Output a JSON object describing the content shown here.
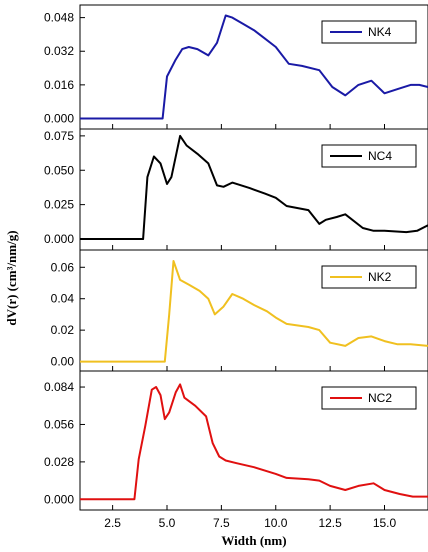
{
  "chart_data": {
    "type": "line",
    "xlabel": "Width (nm)",
    "ylabel": "dV(r) (cm³/nm/g)",
    "xlim": [
      1.0,
      17.0
    ],
    "xticks": [
      "2.5",
      "5.0",
      "7.5",
      "10.0",
      "12.5",
      "15.0"
    ],
    "xtick_values": [
      2.5,
      5.0,
      7.5,
      10.0,
      12.5,
      15.0
    ],
    "panels": [
      {
        "series": [
          {
            "name": "NK4",
            "color": "#1a1aa6",
            "x": [
              1.0,
              4.8,
              5.0,
              5.4,
              5.7,
              6.0,
              6.4,
              6.9,
              7.3,
              7.7,
              8.0,
              8.5,
              9.0,
              9.5,
              10.0,
              10.6,
              11.2,
              12.0,
              12.6,
              13.2,
              13.8,
              14.4,
              15.0,
              15.6,
              16.2,
              16.6,
              17.0
            ],
            "y": [
              0.0,
              0.0,
              0.02,
              0.028,
              0.033,
              0.034,
              0.033,
              0.03,
              0.036,
              0.049,
              0.048,
              0.045,
              0.042,
              0.038,
              0.034,
              0.026,
              0.025,
              0.023,
              0.015,
              0.011,
              0.016,
              0.018,
              0.012,
              0.014,
              0.016,
              0.016,
              0.015
            ]
          }
        ],
        "ylim": [
          -0.005,
          0.054
        ],
        "yticks": [
          "0.000",
          "0.016",
          "0.032",
          "0.048"
        ],
        "ytick_values": [
          0.0,
          0.016,
          0.032,
          0.048
        ]
      },
      {
        "series": [
          {
            "name": "NC4",
            "color": "#000000",
            "x": [
              1.0,
              3.9,
              4.1,
              4.4,
              4.7,
              5.0,
              5.2,
              5.6,
              5.9,
              6.4,
              6.9,
              7.3,
              7.6,
              8.0,
              8.8,
              9.5,
              10.0,
              10.5,
              11.5,
              12.0,
              12.3,
              12.8,
              13.2,
              14.0,
              14.5,
              15.0,
              16.0,
              16.5,
              17.0
            ],
            "y": [
              0.0,
              0.0,
              0.045,
              0.06,
              0.055,
              0.04,
              0.045,
              0.075,
              0.068,
              0.062,
              0.055,
              0.039,
              0.038,
              0.041,
              0.037,
              0.033,
              0.03,
              0.024,
              0.021,
              0.011,
              0.014,
              0.016,
              0.018,
              0.008,
              0.006,
              0.006,
              0.005,
              0.006,
              0.01
            ]
          }
        ],
        "ylim": [
          -0.008,
          0.08
        ],
        "yticks": [
          "0.000",
          "0.025",
          "0.050",
          "0.075"
        ],
        "ytick_values": [
          0.0,
          0.025,
          0.05,
          0.075
        ]
      },
      {
        "series": [
          {
            "name": "NK2",
            "color": "#f0c020",
            "x": [
              1.0,
              4.9,
              5.1,
              5.3,
              5.6,
              6.0,
              6.5,
              6.9,
              7.2,
              7.6,
              8.0,
              8.5,
              9.0,
              9.6,
              10.0,
              10.5,
              11.5,
              12.0,
              12.5,
              13.2,
              13.8,
              14.4,
              15.0,
              15.6,
              16.2,
              17.0
            ],
            "y": [
              0.0,
              0.0,
              0.03,
              0.064,
              0.052,
              0.049,
              0.045,
              0.04,
              0.03,
              0.035,
              0.043,
              0.04,
              0.036,
              0.032,
              0.028,
              0.024,
              0.022,
              0.02,
              0.012,
              0.01,
              0.015,
              0.016,
              0.013,
              0.011,
              0.011,
              0.01
            ]
          }
        ],
        "ylim": [
          -0.006,
          0.071
        ],
        "yticks": [
          "0.00",
          "0.02",
          "0.04",
          "0.06"
        ],
        "ytick_values": [
          0.0,
          0.02,
          0.04,
          0.06
        ]
      },
      {
        "series": [
          {
            "name": "NC2",
            "color": "#e01010",
            "x": [
              1.0,
              3.5,
              3.7,
              4.0,
              4.3,
              4.5,
              4.7,
              4.9,
              5.1,
              5.4,
              5.6,
              5.8,
              6.3,
              6.8,
              7.1,
              7.4,
              7.7,
              8.2,
              9.0,
              10.0,
              10.5,
              11.5,
              12.0,
              12.5,
              13.2,
              13.8,
              14.5,
              15.0,
              15.7,
              16.3,
              17.0
            ],
            "y": [
              0.0,
              0.0,
              0.03,
              0.055,
              0.082,
              0.084,
              0.078,
              0.06,
              0.065,
              0.08,
              0.086,
              0.076,
              0.07,
              0.062,
              0.042,
              0.032,
              0.029,
              0.027,
              0.024,
              0.019,
              0.016,
              0.015,
              0.014,
              0.01,
              0.007,
              0.01,
              0.012,
              0.007,
              0.004,
              0.002,
              0.002
            ]
          }
        ],
        "ylim": [
          -0.008,
          0.096
        ],
        "yticks": [
          "0.000",
          "0.028",
          "0.056",
          "0.084"
        ],
        "ytick_values": [
          0.0,
          0.028,
          0.056,
          0.084
        ]
      }
    ]
  }
}
